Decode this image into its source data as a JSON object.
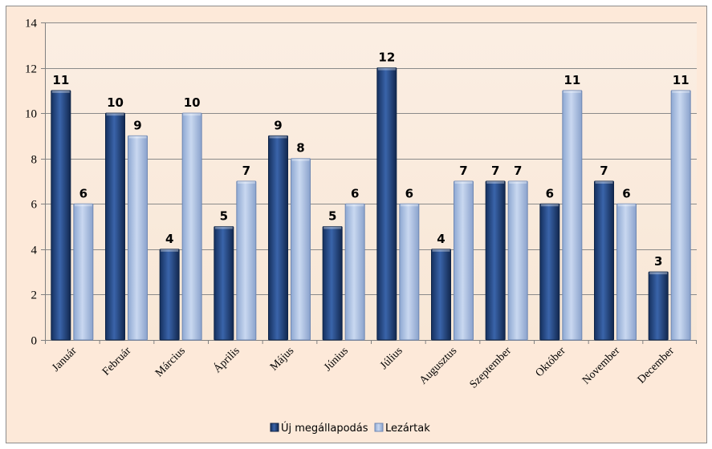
{
  "chart_data": {
    "type": "bar",
    "categories": [
      "Január",
      "Február",
      "Március",
      "Április",
      "Május",
      "Június",
      "Július",
      "Augusztus",
      "Szeptember",
      "Október",
      "November",
      "December"
    ],
    "series": [
      {
        "name": "Új megállapodás",
        "values": [
          11,
          10,
          4,
          5,
          9,
          5,
          12,
          4,
          7,
          6,
          7,
          3
        ],
        "color": "#1f3f7a"
      },
      {
        "name": "Lezártak",
        "values": [
          6,
          9,
          10,
          7,
          8,
          6,
          6,
          7,
          7,
          11,
          6,
          11
        ],
        "color": "#a5bce0"
      }
    ],
    "yticks": [
      0,
      2,
      4,
      6,
      8,
      10,
      12,
      14
    ],
    "ylim": [
      0,
      14
    ],
    "grid": true,
    "legend_position": "bottom",
    "plot_background": "#fcefe3",
    "frame_background": "#fde9d9"
  }
}
